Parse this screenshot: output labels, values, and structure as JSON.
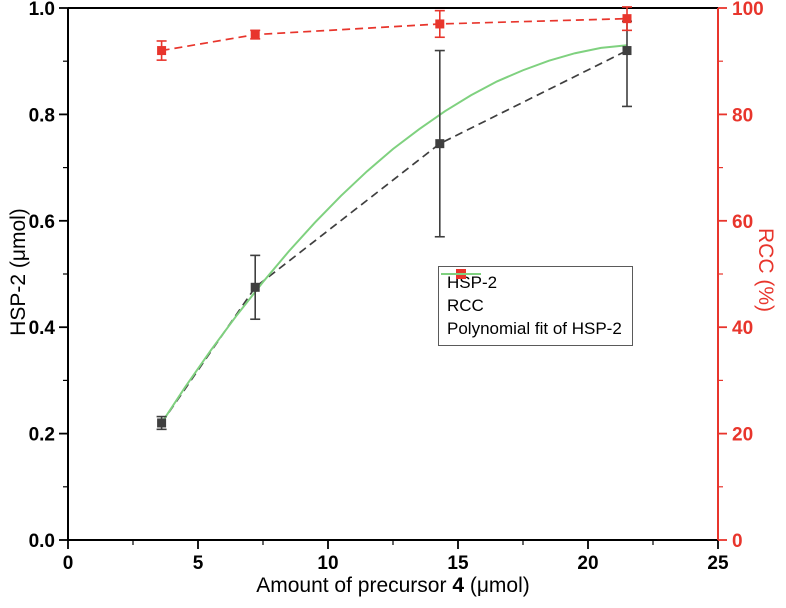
{
  "figure": {
    "xlabel": {
      "prefix": "Amount of precursor ",
      "bold": "4",
      "suffix": " (μmol)"
    },
    "ylabel_left": "HSP-2 (μmol)",
    "ylabel_right": "RCC (%)"
  },
  "chart_data": {
    "type": "line",
    "title": "",
    "grid": false,
    "legend": {
      "position": "center-right",
      "entries": [
        "HSP-2",
        "RCC",
        "Polynomial fit of HSP-2"
      ]
    },
    "x_axis": {
      "label": "Amount of precursor 4 (μmol)",
      "range": [
        0,
        25
      ],
      "major_ticks": [
        0,
        5,
        10,
        15,
        20,
        25
      ],
      "minor_step": 2.5,
      "decimals": 0,
      "color": "#000000"
    },
    "y_axis_left": {
      "label": "HSP-2 (μmol)",
      "range": [
        0,
        1
      ],
      "major_ticks": [
        0,
        0.2,
        0.4,
        0.6,
        0.8,
        1.0
      ],
      "minor_step": 0.1,
      "decimals": 1,
      "color": "#000000"
    },
    "y_axis_right": {
      "label": "RCC (%)",
      "range": [
        0,
        100
      ],
      "major_ticks": [
        0,
        20,
        40,
        60,
        80,
        100
      ],
      "minor_step": 10,
      "decimals": 0,
      "color": "#e8352c"
    },
    "series": [
      {
        "name": "HSP-2",
        "axis": "left",
        "color": "#3f3f3f",
        "line": "dashed",
        "marker": "square",
        "x": [
          3.6,
          7.2,
          14.3,
          21.5
        ],
        "y": [
          0.22,
          0.475,
          0.745,
          0.92
        ],
        "y_err": [
          [
            0.012,
            0.012
          ],
          [
            0.06,
            0.06
          ],
          [
            0.175,
            0.175
          ],
          [
            0.105,
            0.055
          ]
        ]
      },
      {
        "name": "RCC",
        "axis": "right",
        "color": "#e8352c",
        "line": "dashed",
        "marker": "square",
        "x": [
          3.6,
          7.2,
          14.3,
          21.5
        ],
        "y": [
          92,
          95,
          97,
          98
        ],
        "y_err": [
          [
            1.8,
            1.8
          ],
          [
            0.8,
            0.8
          ],
          [
            2.5,
            2.5
          ],
          [
            2.2,
            2.2
          ]
        ]
      },
      {
        "name": "Polynomial fit of HSP-2",
        "axis": "left",
        "color": "#7fd17f",
        "line": "solid",
        "marker": "none",
        "x": [
          3.6,
          4.5,
          5.5,
          6.5,
          7.5,
          8.5,
          9.5,
          10.5,
          11.5,
          12.5,
          13.5,
          14.5,
          15.5,
          16.5,
          17.5,
          18.5,
          19.5,
          20.5,
          21.5
        ],
        "y": [
          0.22,
          0.287,
          0.357,
          0.423,
          0.485,
          0.543,
          0.597,
          0.647,
          0.693,
          0.735,
          0.772,
          0.806,
          0.836,
          0.862,
          0.883,
          0.901,
          0.915,
          0.925,
          0.93
        ]
      }
    ]
  }
}
